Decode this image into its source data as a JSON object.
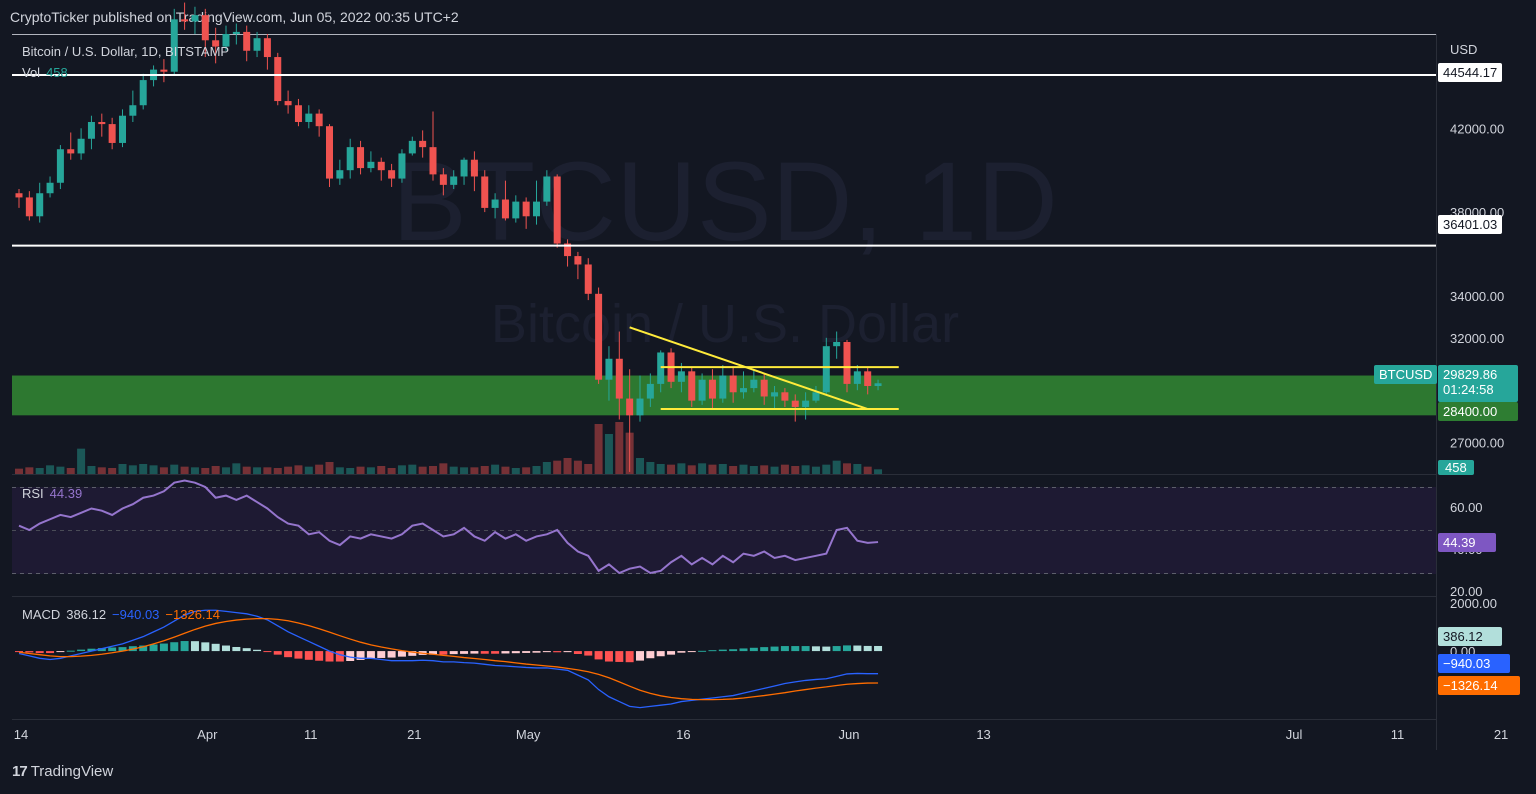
{
  "header": {
    "published": "CryptoTicker published on TradingView.com, Jun 05, 2022 00:35 UTC+2"
  },
  "symbol": {
    "title": "Bitcoin / U.S. Dollar, 1D, BITSTAMP",
    "watermark_ticker": "BTCUSD, 1D",
    "watermark_name": "Bitcoin / U.S. Dollar",
    "currency": "USD"
  },
  "colors": {
    "background": "#131722",
    "up": "#26a69a",
    "down": "#ef5350",
    "zone": "#2e7d32",
    "pattern": "#ffeb3b",
    "rsi": "#7e57c2",
    "macd": "#2962ff",
    "signal": "#ff6d00",
    "level": "#ffffff"
  },
  "legends": {
    "vol_label": "Vol",
    "vol_value": "458",
    "rsi_label": "RSI",
    "rsi_value": "44.39",
    "macd_label": "MACD",
    "macd_hist": "386.12",
    "macd_line": "−940.03",
    "macd_signal": "−1326.14"
  },
  "price_tags": {
    "resistance_top": "44544.17",
    "resistance_mid": "36401.03",
    "symbol_tag": "BTCUSD",
    "last_price": "29829.86",
    "countdown": "01:24:58",
    "support": "28400.00",
    "volume": "458",
    "rsi": "44.39",
    "macd_hist": "386.12",
    "macd_line": "−940.03",
    "macd_signal": "−1326.14"
  },
  "chart_data": {
    "type": "candlestick",
    "price_axis": {
      "ticks": [
        "42000.00",
        "38000.00",
        "34000.00",
        "32000.00",
        "27000.00"
      ],
      "tick_values": [
        42000,
        38000,
        34000,
        32000,
        27000
      ],
      "ylim": [
        25500,
        46500
      ]
    },
    "rsi_axis": {
      "ticks": [
        "60.00",
        "40.00",
        "20.00"
      ],
      "tick_values": [
        60,
        40,
        20
      ],
      "ylim": [
        20,
        78
      ],
      "band": [
        30,
        70
      ]
    },
    "macd_axis": {
      "ticks": [
        "2000.00",
        "0.00"
      ],
      "tick_values": [
        2000,
        0
      ],
      "ylim": [
        -2700,
        2000
      ]
    },
    "time_axis": {
      "labels": [
        "14",
        "Apr",
        "11",
        "21",
        "May",
        "16",
        "Jun",
        "13",
        "Jul",
        "11",
        "21"
      ],
      "label_index": [
        0,
        18,
        28,
        38,
        49,
        64,
        80,
        93,
        123,
        133,
        143
      ]
    },
    "horizontal_levels": [
      44544.17,
      36401.03
    ],
    "zone": [
      28300,
      30200
    ],
    "pattern_lines": [
      {
        "from": [
          59,
          32500
        ],
        "to": [
          82,
          28600
        ]
      },
      {
        "from": [
          62,
          30600
        ],
        "to": [
          85,
          30600
        ]
      },
      {
        "from": [
          62,
          28600
        ],
        "to": [
          85,
          28600
        ]
      }
    ],
    "candles": [
      [
        38900,
        38700,
        39100,
        38200
      ],
      [
        38700,
        37800,
        39000,
        37600
      ],
      [
        37800,
        38900,
        39400,
        37500
      ],
      [
        38900,
        39400,
        39700,
        38700
      ],
      [
        39400,
        41000,
        41200,
        39100
      ],
      [
        41000,
        40800,
        41800,
        40500
      ],
      [
        40800,
        41500,
        42000,
        40500
      ],
      [
        41500,
        42300,
        42600,
        41000
      ],
      [
        42300,
        42200,
        42700,
        41600
      ],
      [
        42200,
        41300,
        42500,
        41000
      ],
      [
        41300,
        42600,
        42900,
        41100
      ],
      [
        42600,
        43100,
        43800,
        42300
      ],
      [
        43100,
        44300,
        44600,
        42900
      ],
      [
        44300,
        44800,
        45000,
        44000
      ],
      [
        44800,
        44700,
        45300,
        44200
      ],
      [
        44700,
        47200,
        47700,
        44500
      ],
      [
        47200,
        47100,
        48000,
        46700
      ],
      [
        47100,
        47400,
        47800,
        46500
      ],
      [
        47400,
        46200,
        47700,
        45400
      ],
      [
        46200,
        45900,
        46800,
        45100
      ],
      [
        45900,
        46500,
        46900,
        45700
      ],
      [
        46500,
        46600,
        47000,
        46000
      ],
      [
        46600,
        45700,
        46900,
        45200
      ],
      [
        45700,
        46300,
        46600,
        45400
      ],
      [
        46300,
        45400,
        46500,
        44800
      ],
      [
        45400,
        43300,
        45600,
        43100
      ],
      [
        43300,
        43100,
        43800,
        42700
      ],
      [
        43100,
        42300,
        43400,
        42100
      ],
      [
        42300,
        42700,
        43100,
        42000
      ],
      [
        42700,
        42100,
        42900,
        41600
      ],
      [
        42100,
        39600,
        42200,
        39200
      ],
      [
        39600,
        40000,
        40500,
        39300
      ],
      [
        40000,
        41100,
        41500,
        39600
      ],
      [
        41100,
        40100,
        41400,
        39800
      ],
      [
        40100,
        40400,
        40900,
        39900
      ],
      [
        40400,
        40000,
        40600,
        39500
      ],
      [
        40000,
        39600,
        40300,
        39200
      ],
      [
        39600,
        40800,
        41000,
        39400
      ],
      [
        40800,
        41400,
        41600,
        40700
      ],
      [
        41400,
        41100,
        41900,
        40600
      ],
      [
        41100,
        39800,
        42800,
        39500
      ],
      [
        39800,
        39300,
        40100,
        38800
      ],
      [
        39300,
        39700,
        40000,
        39100
      ],
      [
        39700,
        40500,
        40600,
        39300
      ],
      [
        40500,
        39700,
        40900,
        39000
      ],
      [
        39700,
        38200,
        40000,
        38000
      ],
      [
        38200,
        38600,
        38900,
        37700
      ],
      [
        38600,
        37700,
        39500,
        37600
      ],
      [
        37700,
        38500,
        38800,
        37500
      ],
      [
        38500,
        37800,
        38700,
        37200
      ],
      [
        37800,
        38500,
        39500,
        37400
      ],
      [
        38500,
        39700,
        40000,
        38300
      ],
      [
        39700,
        36500,
        39800,
        36300
      ],
      [
        36500,
        35900,
        36700,
        35400
      ],
      [
        35900,
        35500,
        36100,
        34800
      ],
      [
        35500,
        34100,
        35800,
        33800
      ],
      [
        34100,
        30000,
        34400,
        29800
      ],
      [
        30000,
        31000,
        31600,
        29000
      ],
      [
        31000,
        29100,
        32300,
        28100
      ],
      [
        29100,
        28300,
        30500,
        25600
      ],
      [
        28300,
        29100,
        30200,
        28000
      ],
      [
        29100,
        29800,
        30300,
        28700
      ],
      [
        29800,
        31300,
        31400,
        29400
      ],
      [
        31300,
        29900,
        31500,
        29600
      ],
      [
        29900,
        30400,
        30800,
        29400
      ],
      [
        30400,
        29000,
        30600,
        28700
      ],
      [
        29000,
        30000,
        30300,
        28800
      ],
      [
        30000,
        29100,
        30500,
        28600
      ],
      [
        29100,
        30200,
        30700,
        28900
      ],
      [
        30200,
        29400,
        30600,
        28900
      ],
      [
        29400,
        29600,
        30400,
        29100
      ],
      [
        29600,
        30000,
        30500,
        29400
      ],
      [
        30000,
        29200,
        30300,
        28800
      ],
      [
        29200,
        29400,
        29700,
        28600
      ],
      [
        29400,
        29000,
        29600,
        28700
      ],
      [
        29000,
        28700,
        29300,
        28000
      ],
      [
        28700,
        29000,
        29400,
        28100
      ],
      [
        29000,
        29400,
        29700,
        28900
      ],
      [
        29400,
        31600,
        32000,
        29300
      ],
      [
        31600,
        31800,
        32300,
        31000
      ],
      [
        31800,
        29800,
        31900,
        29400
      ],
      [
        29800,
        30400,
        30700,
        29500
      ],
      [
        30400,
        29700,
        30600,
        29300
      ],
      [
        29700,
        29830,
        30000,
        29500
      ]
    ],
    "volume_up": [
      false,
      false,
      true,
      true,
      true,
      false,
      true,
      true,
      false,
      false,
      true,
      true,
      true,
      true,
      false,
      true,
      false,
      true,
      false,
      false,
      true,
      true,
      false,
      true,
      false,
      false,
      false,
      false,
      true,
      false,
      false,
      true,
      true,
      false,
      true,
      false,
      false,
      true,
      true,
      false,
      false,
      false,
      true,
      true,
      false,
      false,
      true,
      false,
      true,
      false,
      true,
      true,
      false,
      false,
      false,
      false,
      false,
      true,
      false,
      false,
      true,
      true,
      true,
      false,
      true,
      false,
      true,
      false,
      true,
      false,
      true,
      true,
      false,
      true,
      false,
      false,
      true,
      true,
      true,
      true,
      false,
      true,
      false,
      true
    ],
    "volume": [
      8,
      10,
      9,
      13,
      11,
      9,
      38,
      12,
      10,
      9,
      15,
      13,
      15,
      13,
      10,
      14,
      11,
      10,
      9,
      12,
      10,
      16,
      11,
      10,
      10,
      9,
      11,
      13,
      11,
      14,
      18,
      10,
      9,
      11,
      10,
      12,
      9,
      13,
      14,
      11,
      12,
      16,
      11,
      10,
      10,
      12,
      14,
      11,
      9,
      10,
      12,
      18,
      20,
      24,
      20,
      15,
      75,
      60,
      78,
      62,
      24,
      18,
      15,
      14,
      16,
      13,
      16,
      14,
      15,
      12,
      14,
      12,
      13,
      11,
      14,
      12,
      13,
      11,
      14,
      20,
      16,
      15,
      11,
      7
    ],
    "rsi": [
      52,
      50,
      53,
      55,
      57,
      56,
      58,
      60,
      59,
      57,
      60,
      62,
      65,
      66,
      68,
      72,
      73,
      72,
      70,
      65,
      66,
      64,
      66,
      63,
      60,
      56,
      53,
      52,
      48,
      49,
      45,
      43,
      47,
      46,
      48,
      47,
      46,
      48,
      52,
      53,
      50,
      47,
      48,
      51,
      47,
      45,
      49,
      46,
      48,
      45,
      47,
      48,
      50,
      44,
      40,
      38,
      31,
      34,
      30,
      32,
      33,
      30,
      31,
      35,
      38,
      34,
      37,
      34,
      38,
      35,
      39,
      38,
      40,
      37,
      38,
      36,
      37,
      38,
      39,
      50,
      51,
      45,
      44,
      44.39
    ],
    "macd": [
      -100,
      -200,
      -300,
      -350,
      -300,
      -200,
      -100,
      0,
      100,
      200,
      300,
      450,
      600,
      800,
      1000,
      1250,
      1500,
      1650,
      1700,
      1700,
      1650,
      1600,
      1550,
      1450,
      1300,
      1050,
      800,
      600,
      400,
      200,
      0,
      -150,
      -250,
      -300,
      -300,
      -350,
      -400,
      -400,
      -400,
      -380,
      -400,
      -450,
      -450,
      -480,
      -500,
      -550,
      -600,
      -620,
      -650,
      -680,
      -700,
      -700,
      -750,
      -800,
      -1000,
      -1200,
      -1600,
      -1900,
      -2100,
      -2300,
      -2350,
      -2300,
      -2250,
      -2200,
      -2100,
      -2050,
      -2000,
      -1950,
      -1900,
      -1850,
      -1750,
      -1650,
      -1550,
      -1450,
      -1350,
      -1280,
      -1220,
      -1180,
      -1150,
      -1050,
      -950,
      -930,
      -940,
      -940.03
    ],
    "signal": [
      -50,
      -100,
      -150,
      -200,
      -230,
      -230,
      -210,
      -180,
      -130,
      -70,
      0,
      80,
      180,
      300,
      430,
      580,
      740,
      900,
      1040,
      1150,
      1230,
      1290,
      1330,
      1350,
      1350,
      1320,
      1260,
      1170,
      1060,
      930,
      790,
      640,
      500,
      370,
      260,
      170,
      90,
      20,
      -40,
      -90,
      -130,
      -180,
      -220,
      -270,
      -310,
      -350,
      -400,
      -440,
      -490,
      -540,
      -580,
      -620,
      -660,
      -720,
      -780,
      -860,
      -970,
      -1110,
      -1280,
      -1460,
      -1630,
      -1760,
      -1860,
      -1930,
      -1980,
      -2010,
      -2020,
      -2020,
      -2010,
      -1990,
      -1950,
      -1900,
      -1850,
      -1790,
      -1730,
      -1660,
      -1600,
      -1540,
      -1490,
      -1430,
      -1380,
      -1350,
      -1330,
      -1326.14
    ]
  }
}
